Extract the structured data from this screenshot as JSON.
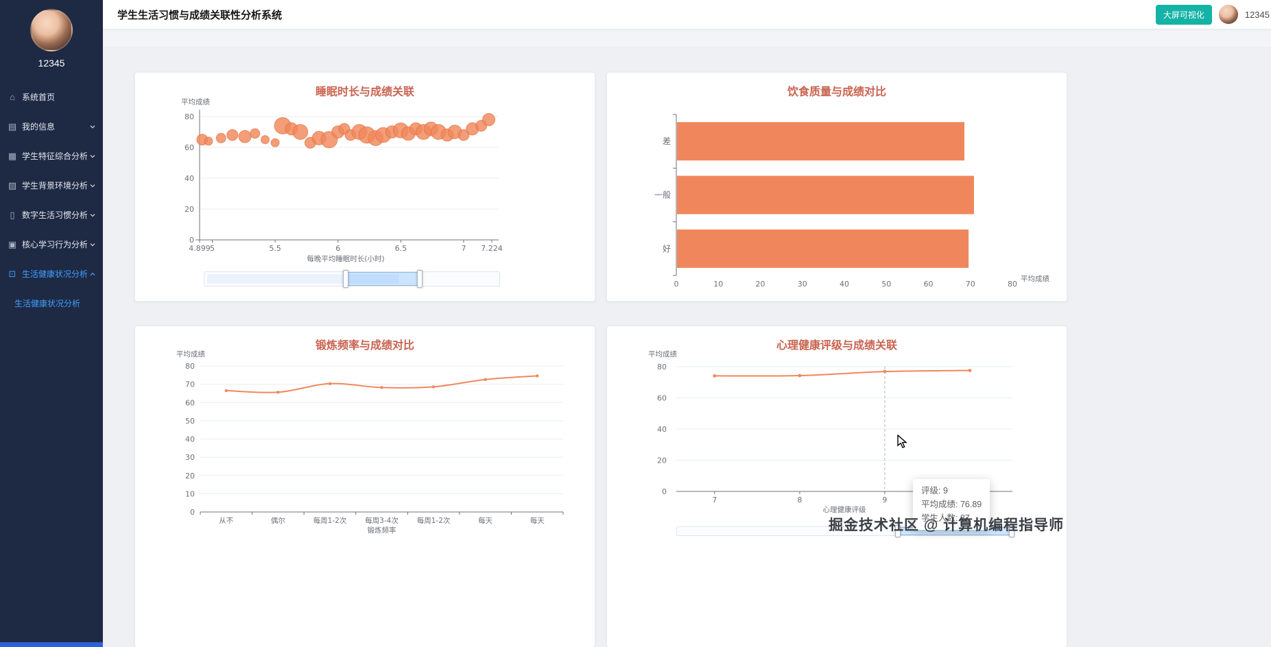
{
  "sidebar": {
    "username": "12345",
    "items": [
      {
        "label": "系统首页",
        "icon": "home-icon"
      },
      {
        "label": "我的信息",
        "icon": "profile-icon",
        "chevron": "down"
      },
      {
        "label": "学生特征综合分析",
        "icon": "features-icon",
        "chevron": "down"
      },
      {
        "label": "学生背景环境分析",
        "icon": "background-icon",
        "chevron": "down"
      },
      {
        "label": "数字生活习惯分析",
        "icon": "digital-icon",
        "chevron": "down"
      },
      {
        "label": "核心学习行为分析",
        "icon": "learning-icon",
        "chevron": "down"
      },
      {
        "label": "生活健康状况分析",
        "icon": "health-icon",
        "chevron": "up",
        "active": true
      }
    ],
    "submenu_item": "生活健康状况分析"
  },
  "header": {
    "title": "学生生活习惯与成绩关联性分析系统",
    "screen_button": "大屏可视化",
    "username": "12345"
  },
  "icons": {
    "home": "⌂",
    "profile": "▤",
    "features": "▦",
    "background": "▨",
    "digital": "▯",
    "learning": "▣",
    "health": "⊡"
  },
  "colors": {
    "accent_teal": "#14b3a6",
    "salmon": "#F0875C",
    "salmon_border": "#E2703F",
    "title_coral": "#C96350",
    "active_blue": "#409EFF",
    "sidebar_bg": "#1e2a44",
    "axis": "#6E7079",
    "grid": "#E8EDF3"
  },
  "watermark": "掘金技术社区 @ 计算机编程指导师",
  "chart_data": [
    {
      "type": "scatter",
      "title": "睡眠时长与成绩关联",
      "ylabel": "平均成绩",
      "xlabel": "每晚平均睡眠时长(小时)",
      "xlim": [
        4.899,
        7.224
      ],
      "ylim": [
        0,
        80
      ],
      "yticks": [
        0,
        20,
        40,
        60,
        80
      ],
      "xticks": [
        4.899,
        5,
        5.5,
        6,
        6.5,
        7,
        7.224
      ],
      "points": [
        [
          4.92,
          65,
          8
        ],
        [
          4.97,
          64,
          6
        ],
        [
          5.07,
          66,
          7
        ],
        [
          5.16,
          68,
          8
        ],
        [
          5.26,
          67,
          9
        ],
        [
          5.34,
          69,
          7
        ],
        [
          5.42,
          65,
          6
        ],
        [
          5.5,
          63,
          6
        ],
        [
          5.56,
          74,
          12
        ],
        [
          5.63,
          72,
          9
        ],
        [
          5.7,
          70,
          11
        ],
        [
          5.78,
          63,
          8
        ],
        [
          5.85,
          66,
          10
        ],
        [
          5.93,
          65,
          12
        ],
        [
          6.0,
          70,
          9
        ],
        [
          6.05,
          72,
          8
        ],
        [
          6.1,
          68,
          8
        ],
        [
          6.17,
          70,
          11
        ],
        [
          6.23,
          68,
          12
        ],
        [
          6.3,
          66,
          11
        ],
        [
          6.36,
          68,
          11
        ],
        [
          6.43,
          70,
          9
        ],
        [
          6.5,
          71,
          11
        ],
        [
          6.56,
          69,
          10
        ],
        [
          6.62,
          72,
          9
        ],
        [
          6.68,
          70,
          11
        ],
        [
          6.74,
          72,
          10
        ],
        [
          6.8,
          70,
          11
        ],
        [
          6.87,
          68,
          9
        ],
        [
          6.93,
          70,
          10
        ],
        [
          7.0,
          68,
          8
        ],
        [
          7.07,
          72,
          9
        ],
        [
          7.14,
          74,
          8
        ],
        [
          7.2,
          78,
          9
        ]
      ],
      "datazoom": {
        "start": 0.48,
        "end": 0.73
      }
    },
    {
      "type": "bar",
      "orientation": "horizontal",
      "title": "饮食质量与成绩对比",
      "categories": [
        "差",
        "一般",
        "好"
      ],
      "values": [
        68.4,
        70.7,
        69.4
      ],
      "xlabel": "平均成绩",
      "xlim": [
        0,
        80
      ],
      "xticks": [
        0,
        10,
        20,
        30,
        40,
        50,
        60,
        70,
        80
      ]
    },
    {
      "type": "line",
      "title": "锻炼频率与成绩对比",
      "ylabel": "平均成绩",
      "xlabel": "锻炼频率",
      "categories": [
        "从不",
        "偶尔",
        "每周1-2次",
        "每周3-4次",
        "每周1-2次",
        "每天",
        "每天"
      ],
      "values": [
        66.5,
        65.6,
        70.3,
        68.2,
        68.6,
        72.6,
        74.6
      ],
      "ylim": [
        0,
        80
      ],
      "yticks": [
        0,
        10,
        20,
        30,
        40,
        50,
        60,
        70,
        80
      ]
    },
    {
      "type": "line",
      "title": "心理健康评级与成绩关联",
      "ylabel": "平均成绩",
      "xlabel": "心理健康评级",
      "x": [
        7,
        8,
        9,
        10
      ],
      "values": [
        74.1,
        74.3,
        76.89,
        77.6
      ],
      "xticks": [
        7,
        8,
        9
      ],
      "xlim": [
        6.55,
        10.5
      ],
      "ylim": [
        0,
        80
      ],
      "yticks": [
        0,
        20,
        40,
        60,
        80
      ],
      "tooltip": {
        "lines": [
          "评级: 9",
          "平均成绩: 76.89",
          "学生人数: 87"
        ],
        "marker_x": 9
      },
      "datazoom": {
        "start": 0.66,
        "end": 1
      }
    }
  ]
}
